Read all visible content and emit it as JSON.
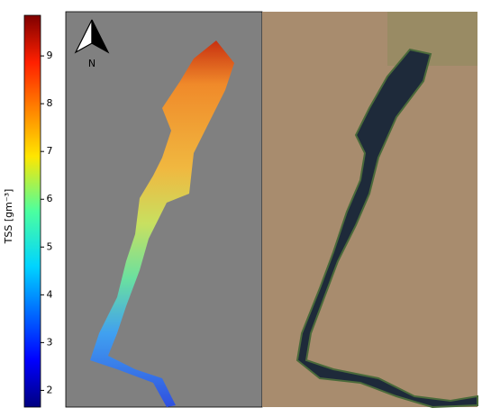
{
  "colorbar": {
    "label": "TSS [gm⁻³]",
    "range": [
      1.65,
      9.85
    ],
    "ticks": [
      2,
      3,
      4,
      5,
      6,
      7,
      8,
      9
    ]
  },
  "north_arrow": {
    "label": "N"
  }
}
